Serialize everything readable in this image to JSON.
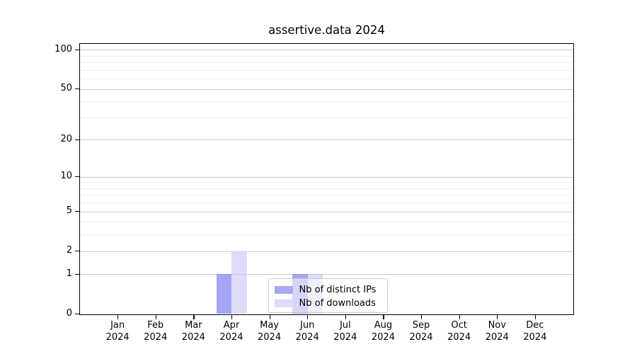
{
  "chart_data": {
    "type": "bar",
    "title": "assertive.data 2024",
    "categories": [
      "Jan",
      "Feb",
      "Mar",
      "Apr",
      "May",
      "Jun",
      "Jul",
      "Aug",
      "Sep",
      "Oct",
      "Nov",
      "Dec"
    ],
    "x_axis": {
      "tick_labels_line2": "2024"
    },
    "y_axis": {
      "scale": "log1p",
      "ticks": [
        0,
        1,
        2,
        5,
        10,
        20,
        50,
        100
      ],
      "minor_ticks": [
        3,
        4,
        6,
        7,
        8,
        9,
        30,
        40,
        60,
        70,
        80,
        90
      ],
      "range": [
        0,
        111
      ]
    },
    "series": [
      {
        "name": "Nb of distinct IPs",
        "color": "#a9a9f7",
        "fill": "rgba(130,130,243,0.72)",
        "values": [
          0,
          0,
          0,
          1,
          0,
          1,
          0,
          0,
          0,
          0,
          0,
          0
        ]
      },
      {
        "name": "Nb of downloads",
        "color": "#dcdcf9",
        "fill": "rgba(190,190,243,0.52)",
        "values": [
          0,
          0,
          0,
          2,
          0,
          1,
          0,
          0,
          0,
          0,
          0,
          0
        ]
      }
    ],
    "legend": {
      "position": "lower center"
    },
    "grid": {
      "major_color": "#c9c9c9",
      "minor_color": "#f0f0f0"
    }
  }
}
